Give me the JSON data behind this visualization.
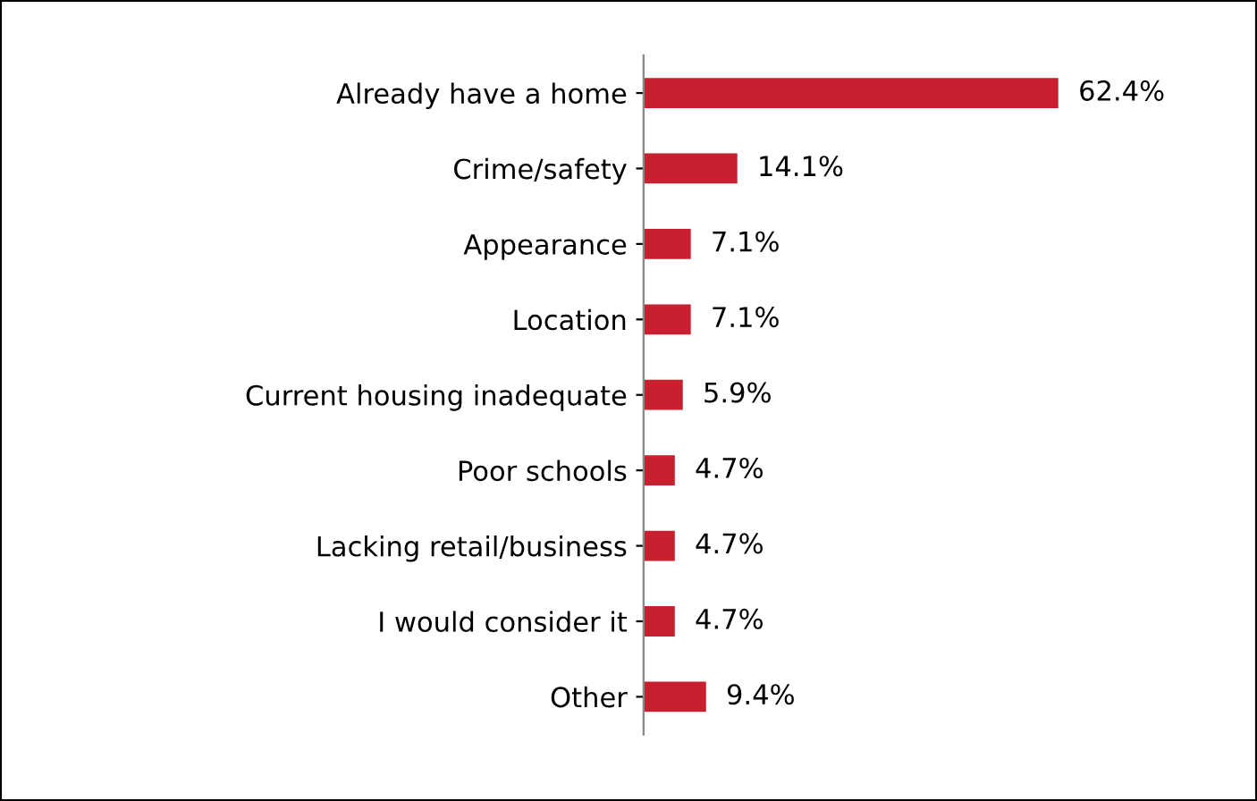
{
  "chart_data": {
    "type": "bar",
    "orientation": "horizontal",
    "categories": [
      "Already have a home",
      "Crime/safety",
      "Appearance",
      "Location",
      "Current housing inadequate",
      "Poor schools",
      "Lacking retail/business",
      "I would consider it",
      "Other"
    ],
    "values": [
      62.4,
      14.1,
      7.1,
      7.1,
      5.9,
      4.7,
      4.7,
      4.7,
      9.4
    ],
    "value_labels": [
      "62.4%",
      "14.1%",
      "7.1%",
      "7.1%",
      "5.9%",
      "4.7%",
      "4.7%",
      "4.7%",
      "9.4%"
    ],
    "color": "#c8202f",
    "grid": false,
    "legend": false
  }
}
